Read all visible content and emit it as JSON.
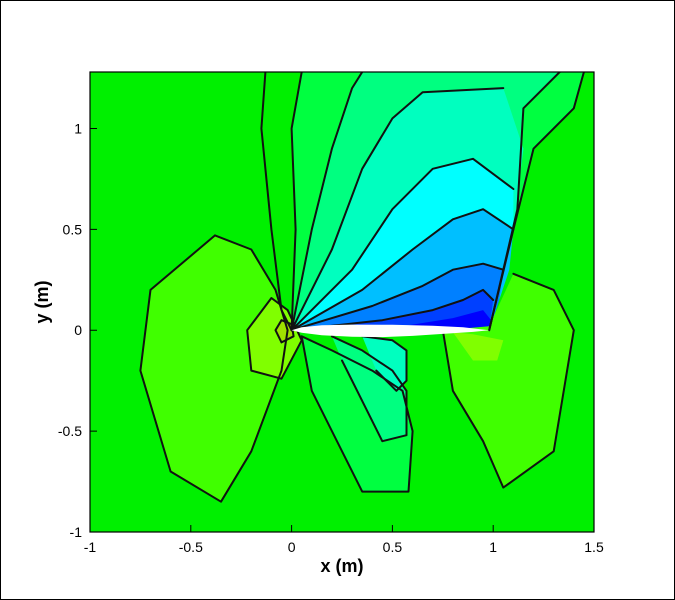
{
  "chart_data": {
    "type": "contour",
    "xlabel": "x (m)",
    "ylabel": "y (m)",
    "xlim": [
      -1,
      1.5
    ],
    "ylim": [
      -1,
      1.28
    ],
    "xticks": [
      -1,
      -0.5,
      0,
      0.5,
      1,
      1.5
    ],
    "xtick_labels": [
      "-1",
      "-0.5",
      "0",
      "0.5",
      "1",
      "1.5"
    ],
    "yticks": [
      -1,
      -0.5,
      0,
      0.5,
      1
    ],
    "ytick_labels": [
      "-1",
      "-0.5",
      "0",
      "0.5",
      "1"
    ],
    "grid": false,
    "legend": "none",
    "colors": {
      "background_field": "#00f000",
      "field_levels_low_to_high": [
        "#0000ff",
        "#0040ff",
        "#0080ff",
        "#00bfff",
        "#00ffff",
        "#00ffbf",
        "#00ff80",
        "#00ff40",
        "#00f000",
        "#40ff00",
        "#80ff00",
        "#a0e000"
      ],
      "contour_line": "#111111",
      "airfoil": "#ffffff"
    },
    "airfoil": {
      "leading_edge": [
        0.0,
        0.0
      ],
      "trailing_edge": [
        0.98,
        0.0
      ],
      "upper": [
        [
          0.0,
          0.0
        ],
        [
          0.05,
          0.015
        ],
        [
          0.15,
          0.025
        ],
        [
          0.3,
          0.028
        ],
        [
          0.5,
          0.027
        ],
        [
          0.7,
          0.022
        ],
        [
          0.85,
          0.015
        ],
        [
          0.98,
          0.0
        ]
      ],
      "lower": [
        [
          0.0,
          0.0
        ],
        [
          0.05,
          -0.012
        ],
        [
          0.15,
          -0.025
        ],
        [
          0.3,
          -0.032
        ],
        [
          0.45,
          -0.034
        ],
        [
          0.6,
          -0.028
        ],
        [
          0.75,
          -0.018
        ],
        [
          0.9,
          -0.008
        ],
        [
          0.98,
          0.0
        ]
      ]
    },
    "regions": [
      {
        "level": 8,
        "points": [
          [
            0.0,
            0.0
          ],
          [
            -0.05,
            0.1
          ],
          [
            -0.1,
            0.5
          ],
          [
            -0.15,
            1.0
          ],
          [
            -0.13,
            1.28
          ],
          [
            1.5,
            1.28
          ],
          [
            1.5,
            0.25
          ],
          [
            1.1,
            0.2
          ],
          [
            0.98,
            0.0
          ]
        ]
      },
      {
        "level": 7,
        "points": [
          [
            0.0,
            0.0
          ],
          [
            0.02,
            0.5
          ],
          [
            0.0,
            1.0
          ],
          [
            0.05,
            1.28
          ],
          [
            1.45,
            1.28
          ],
          [
            1.4,
            1.1
          ],
          [
            1.2,
            0.9
          ],
          [
            1.1,
            0.5
          ],
          [
            0.98,
            0.0
          ]
        ]
      },
      {
        "level": 6,
        "points": [
          [
            0.0,
            0.0
          ],
          [
            0.1,
            0.5
          ],
          [
            0.2,
            0.9
          ],
          [
            0.3,
            1.2
          ],
          [
            0.35,
            1.28
          ],
          [
            1.33,
            1.28
          ],
          [
            1.15,
            1.1
          ],
          [
            1.12,
            0.6
          ],
          [
            0.98,
            0.0
          ]
        ]
      },
      {
        "level": 5,
        "points": [
          [
            0.0,
            0.0
          ],
          [
            0.2,
            0.4
          ],
          [
            0.35,
            0.8
          ],
          [
            0.5,
            1.05
          ],
          [
            0.65,
            1.18
          ],
          [
            1.05,
            1.2
          ],
          [
            1.15,
            0.9
          ],
          [
            1.1,
            0.5
          ],
          [
            0.98,
            0.0
          ]
        ]
      },
      {
        "level": 4,
        "points": [
          [
            0.0,
            0.0
          ],
          [
            0.3,
            0.3
          ],
          [
            0.5,
            0.6
          ],
          [
            0.7,
            0.8
          ],
          [
            0.9,
            0.85
          ],
          [
            1.1,
            0.7
          ],
          [
            1.1,
            0.5
          ],
          [
            1.0,
            0.05
          ],
          [
            0.98,
            0.0
          ]
        ]
      },
      {
        "level": 3,
        "points": [
          [
            0.0,
            0.0
          ],
          [
            0.35,
            0.2
          ],
          [
            0.6,
            0.4
          ],
          [
            0.8,
            0.55
          ],
          [
            0.95,
            0.6
          ],
          [
            1.1,
            0.5
          ],
          [
            1.08,
            0.3
          ],
          [
            0.98,
            0.0
          ]
        ]
      },
      {
        "level": 2,
        "points": [
          [
            0.0,
            0.0
          ],
          [
            0.4,
            0.12
          ],
          [
            0.65,
            0.22
          ],
          [
            0.8,
            0.3
          ],
          [
            0.95,
            0.33
          ],
          [
            1.05,
            0.3
          ],
          [
            1.03,
            0.15
          ],
          [
            0.98,
            0.0
          ]
        ]
      },
      {
        "level": 1,
        "points": [
          [
            0.0,
            0.0
          ],
          [
            0.45,
            0.05
          ],
          [
            0.7,
            0.1
          ],
          [
            0.85,
            0.15
          ],
          [
            0.95,
            0.2
          ],
          [
            1.0,
            0.15
          ],
          [
            0.98,
            0.0
          ]
        ]
      },
      {
        "level": 0,
        "points": [
          [
            0.0,
            0.0
          ],
          [
            0.55,
            0.02
          ],
          [
            0.8,
            0.06
          ],
          [
            0.95,
            0.1
          ],
          [
            0.99,
            0.05
          ],
          [
            0.98,
            0.0
          ]
        ]
      },
      {
        "level": 9,
        "points": [
          [
            -0.38,
            0.47
          ],
          [
            -0.2,
            0.4
          ],
          [
            -0.08,
            0.2
          ],
          [
            -0.02,
            0.0
          ],
          [
            -0.05,
            -0.2
          ],
          [
            -0.2,
            -0.6
          ],
          [
            -0.35,
            -0.85
          ],
          [
            -0.6,
            -0.7
          ],
          [
            -0.75,
            -0.2
          ],
          [
            -0.7,
            0.2
          ]
        ]
      },
      {
        "level": 10,
        "points": [
          [
            -0.1,
            0.16
          ],
          [
            -0.02,
            0.1
          ],
          [
            0.05,
            -0.05
          ],
          [
            -0.05,
            -0.24
          ],
          [
            -0.2,
            -0.2
          ],
          [
            -0.22,
            0.0
          ]
        ]
      },
      {
        "level": 11,
        "points": [
          [
            -0.05,
            0.05
          ],
          [
            0.0,
            0.03
          ],
          [
            0.01,
            -0.03
          ],
          [
            -0.05,
            -0.06
          ],
          [
            -0.08,
            0.0
          ]
        ]
      },
      {
        "level": 7,
        "points": [
          [
            0.05,
            -0.03
          ],
          [
            0.2,
            -0.1
          ],
          [
            0.4,
            -0.2
          ],
          [
            0.55,
            -0.3
          ],
          [
            0.6,
            -0.5
          ],
          [
            0.58,
            -0.8
          ],
          [
            0.35,
            -0.8
          ],
          [
            0.2,
            -0.5
          ],
          [
            0.1,
            -0.3
          ]
        ]
      },
      {
        "level": 6,
        "points": [
          [
            0.2,
            -0.03
          ],
          [
            0.35,
            -0.1
          ],
          [
            0.5,
            -0.2
          ],
          [
            0.57,
            -0.3
          ],
          [
            0.57,
            -0.52
          ],
          [
            0.45,
            -0.55
          ],
          [
            0.35,
            -0.35
          ],
          [
            0.25,
            -0.15
          ]
        ]
      },
      {
        "level": 5,
        "points": [
          [
            0.35,
            -0.03
          ],
          [
            0.5,
            -0.05
          ],
          [
            0.57,
            -0.1
          ],
          [
            0.57,
            -0.25
          ],
          [
            0.52,
            -0.3
          ],
          [
            0.42,
            -0.2
          ]
        ]
      },
      {
        "level": 9,
        "points": [
          [
            1.1,
            0.28
          ],
          [
            1.3,
            0.2
          ],
          [
            1.4,
            0.0
          ],
          [
            1.3,
            -0.6
          ],
          [
            1.05,
            -0.78
          ],
          [
            0.95,
            -0.55
          ],
          [
            0.8,
            -0.3
          ],
          [
            0.75,
            0.0
          ],
          [
            0.98,
            0.02
          ]
        ]
      },
      {
        "level": 10,
        "points": [
          [
            0.8,
            -0.01
          ],
          [
            0.9,
            -0.02
          ],
          [
            1.05,
            -0.05
          ],
          [
            1.02,
            -0.15
          ],
          [
            0.9,
            -0.15
          ]
        ]
      }
    ],
    "contour_lines": [
      [
        [
          -0.38,
          0.47
        ],
        [
          -0.2,
          0.4
        ],
        [
          -0.08,
          0.2
        ],
        [
          -0.02,
          0.0
        ],
        [
          -0.05,
          -0.2
        ],
        [
          -0.2,
          -0.6
        ],
        [
          -0.35,
          -0.85
        ],
        [
          -0.6,
          -0.7
        ],
        [
          -0.75,
          -0.2
        ],
        [
          -0.7,
          0.2
        ],
        [
          -0.38,
          0.47
        ]
      ],
      [
        [
          -0.1,
          0.16
        ],
        [
          -0.02,
          0.1
        ],
        [
          0.05,
          -0.05
        ],
        [
          -0.05,
          -0.24
        ],
        [
          -0.2,
          -0.2
        ],
        [
          -0.22,
          0.0
        ],
        [
          -0.1,
          0.16
        ]
      ],
      [
        [
          -0.05,
          0.05
        ],
        [
          0.0,
          0.03
        ],
        [
          0.01,
          -0.03
        ],
        [
          -0.05,
          -0.06
        ],
        [
          -0.08,
          0.0
        ],
        [
          -0.05,
          0.05
        ]
      ],
      [
        [
          0.0,
          0.0
        ],
        [
          -0.05,
          0.1
        ],
        [
          -0.1,
          0.5
        ],
        [
          -0.15,
          1.0
        ],
        [
          -0.13,
          1.28
        ]
      ],
      [
        [
          0.0,
          0.0
        ],
        [
          0.02,
          0.5
        ],
        [
          0.0,
          1.0
        ],
        [
          0.05,
          1.28
        ]
      ],
      [
        [
          0.0,
          0.0
        ],
        [
          0.1,
          0.5
        ],
        [
          0.2,
          0.9
        ],
        [
          0.3,
          1.2
        ],
        [
          0.35,
          1.28
        ]
      ],
      [
        [
          0.0,
          0.0
        ],
        [
          0.2,
          0.4
        ],
        [
          0.35,
          0.8
        ],
        [
          0.5,
          1.05
        ],
        [
          0.65,
          1.18
        ],
        [
          1.05,
          1.2
        ]
      ],
      [
        [
          0.0,
          0.0
        ],
        [
          0.3,
          0.3
        ],
        [
          0.5,
          0.6
        ],
        [
          0.7,
          0.8
        ],
        [
          0.9,
          0.85
        ],
        [
          1.1,
          0.7
        ]
      ],
      [
        [
          0.0,
          0.0
        ],
        [
          0.35,
          0.2
        ],
        [
          0.6,
          0.4
        ],
        [
          0.8,
          0.55
        ],
        [
          0.95,
          0.6
        ],
        [
          1.1,
          0.5
        ]
      ],
      [
        [
          0.0,
          0.0
        ],
        [
          0.4,
          0.12
        ],
        [
          0.65,
          0.22
        ],
        [
          0.8,
          0.3
        ],
        [
          0.95,
          0.33
        ],
        [
          1.05,
          0.3
        ]
      ],
      [
        [
          0.0,
          0.0
        ],
        [
          0.45,
          0.05
        ],
        [
          0.7,
          0.1
        ],
        [
          0.85,
          0.15
        ],
        [
          0.95,
          0.2
        ],
        [
          1.0,
          0.15
        ]
      ],
      [
        [
          1.45,
          1.28
        ],
        [
          1.4,
          1.1
        ],
        [
          1.2,
          0.9
        ],
        [
          1.1,
          0.5
        ],
        [
          0.98,
          0.0
        ]
      ],
      [
        [
          1.33,
          1.28
        ],
        [
          1.15,
          1.1
        ],
        [
          1.12,
          0.6
        ],
        [
          0.98,
          0.0
        ]
      ],
      [
        [
          1.1,
          0.28
        ],
        [
          1.3,
          0.2
        ],
        [
          1.4,
          0.0
        ],
        [
          1.3,
          -0.6
        ],
        [
          1.05,
          -0.78
        ],
        [
          0.95,
          -0.55
        ],
        [
          0.8,
          -0.3
        ],
        [
          0.75,
          0.0
        ]
      ],
      [
        [
          0.05,
          -0.03
        ],
        [
          0.2,
          -0.1
        ],
        [
          0.4,
          -0.2
        ],
        [
          0.55,
          -0.3
        ],
        [
          0.6,
          -0.5
        ],
        [
          0.58,
          -0.8
        ],
        [
          0.35,
          -0.8
        ],
        [
          0.2,
          -0.5
        ],
        [
          0.1,
          -0.3
        ],
        [
          0.05,
          -0.03
        ]
      ],
      [
        [
          0.2,
          -0.03
        ],
        [
          0.35,
          -0.1
        ],
        [
          0.5,
          -0.2
        ],
        [
          0.57,
          -0.3
        ],
        [
          0.57,
          -0.52
        ],
        [
          0.45,
          -0.55
        ],
        [
          0.35,
          -0.35
        ],
        [
          0.25,
          -0.15
        ]
      ],
      [
        [
          0.35,
          -0.03
        ],
        [
          0.5,
          -0.05
        ],
        [
          0.57,
          -0.1
        ],
        [
          0.57,
          -0.25
        ],
        [
          0.52,
          -0.3
        ],
        [
          0.42,
          -0.2
        ]
      ]
    ]
  }
}
